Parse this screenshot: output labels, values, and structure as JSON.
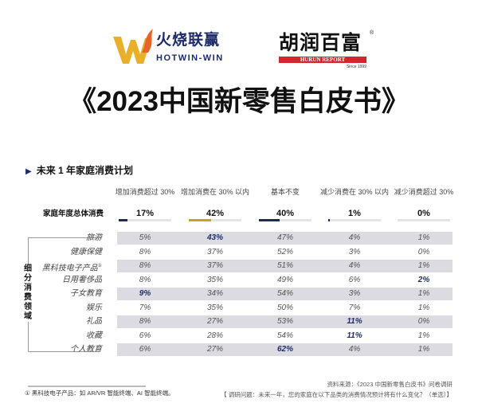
{
  "logos": {
    "hotwin": {
      "cn": "火烧联赢",
      "en": "HOTWIN-WIN"
    },
    "hurun": {
      "cn": "胡润百富",
      "en": "HURUN REPORT",
      "since": "Since 1999",
      "reg": "®"
    }
  },
  "title": "《2023中国新零售白皮书》",
  "section_title": "未来 1 年家庭消费计划",
  "columns": [
    "增加消费超过 30%",
    "增加消费在 30% 以内",
    "基本不变",
    "减少消费在 30% 以内",
    "减少消费超过 30%"
  ],
  "overall": {
    "label": "家庭年度总体消费",
    "values": [
      "17%",
      "42%",
      "40%",
      "1%",
      "0%"
    ],
    "fractions": [
      0.17,
      0.42,
      0.4,
      0.01,
      0
    ],
    "bar_colors": [
      "#1d2b5b",
      "#c9a11e",
      "#1d2b5b",
      "#1d2b5b",
      "#1d2b5b"
    ]
  },
  "category_group_label": "细分消费领域",
  "rows": [
    {
      "label": "旅游",
      "values": [
        "5%",
        "43%",
        "47%",
        "4%",
        "1%"
      ],
      "highlight": 1
    },
    {
      "label": "健康保健",
      "values": [
        "8%",
        "37%",
        "52%",
        "3%",
        "0%"
      ],
      "highlight": -1
    },
    {
      "label": "黑科技电子产品",
      "note": "①",
      "values": [
        "8%",
        "37%",
        "51%",
        "4%",
        "1%"
      ],
      "highlight": -1
    },
    {
      "label": "日用奢侈品",
      "values": [
        "8%",
        "35%",
        "49%",
        "6%",
        "2%"
      ],
      "highlight": 4
    },
    {
      "label": "子女教育",
      "values": [
        "9%",
        "34%",
        "54%",
        "3%",
        "1%"
      ],
      "highlight": 0
    },
    {
      "label": "娱乐",
      "values": [
        "7%",
        "35%",
        "50%",
        "7%",
        "1%"
      ],
      "highlight": -1
    },
    {
      "label": "礼品",
      "values": [
        "8%",
        "27%",
        "53%",
        "11%",
        "0%"
      ],
      "highlight": 3
    },
    {
      "label": "收藏",
      "values": [
        "6%",
        "28%",
        "54%",
        "11%",
        "1%"
      ],
      "highlight": 3
    },
    {
      "label": "个人教育",
      "values": [
        "6%",
        "27%",
        "62%",
        "4%",
        "1%"
      ],
      "highlight": 2
    }
  ],
  "footnote": "① 黑科技电子产品：如 AR/VR 智能终端、AI 智能终端。",
  "source": "资料来源：《2023 中国新零售白皮书》问卷调研",
  "question": "【 调研问题：未来一年，您的家庭在以下品类的消费情况预计将有什么变化？（单选）】"
}
